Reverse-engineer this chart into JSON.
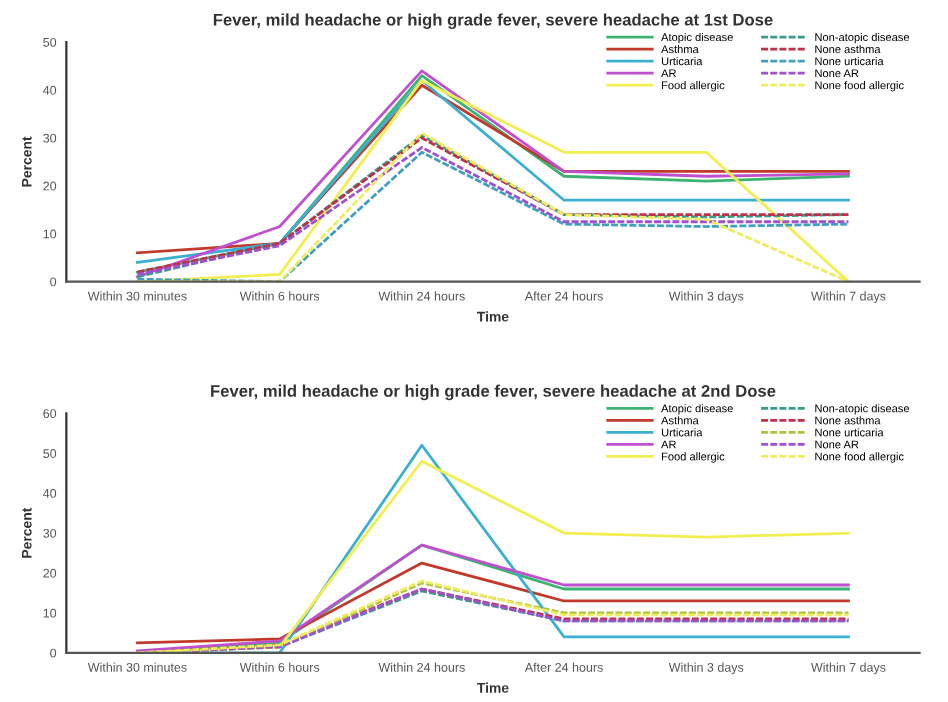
{
  "chart_data": [
    {
      "type": "line",
      "title": "Fever, mild headache or high grade fever, severe headache at 1st Dose",
      "xlabel": "Time",
      "ylabel": "Percent",
      "categories": [
        "Within 30 minutes",
        "Within 6 hours",
        "Within 24 hours",
        "After 24 hours",
        "Within 3 days",
        "Within 7 days"
      ],
      "ylim": [
        0,
        50
      ],
      "yticks": [
        0,
        10,
        20,
        30,
        40,
        50
      ],
      "grid": false,
      "legend": "top right",
      "marker": "none",
      "series": [
        {
          "name": "Atopic disease",
          "color": "#3cb371",
          "line_style": "solid",
          "values": [
            2,
            8,
            43,
            22,
            21,
            22
          ]
        },
        {
          "name": "Asthma",
          "color": "#c0392b",
          "line_style": "solid",
          "values": [
            6,
            8,
            41,
            23,
            23,
            23
          ]
        },
        {
          "name": "Urticaria",
          "color": "#3bb0d0",
          "line_style": "solid",
          "values": [
            4,
            8,
            42,
            17,
            17,
            17
          ]
        },
        {
          "name": "AR",
          "color": "#c050d0",
          "line_style": "solid",
          "values": [
            1,
            11.5,
            44,
            23,
            22,
            22.5
          ]
        },
        {
          "name": "Food allergic",
          "color": "#f2ee50",
          "line_style": "solid",
          "values": [
            0,
            1.5,
            42,
            27,
            27,
            0
          ]
        },
        {
          "name": "Non-atopic disease",
          "color": "#3a9a8a",
          "line_style": "dashed",
          "values": [
            1,
            8,
            30.5,
            14,
            13.5,
            14
          ]
        },
        {
          "name": "None asthma",
          "color": "#c0304a",
          "line_style": "dashed",
          "values": [
            2,
            8,
            30,
            14,
            14,
            14
          ]
        },
        {
          "name": "None urticaria",
          "color": "#40a0c0",
          "line_style": "dashed",
          "values": [
            0.5,
            0,
            27,
            12,
            11.5,
            12
          ]
        },
        {
          "name": "None AR",
          "color": "#a050d0",
          "line_style": "dashed",
          "values": [
            1.5,
            7.5,
            28,
            12.5,
            12.5,
            12.5
          ]
        },
        {
          "name": "None food allergic",
          "color": "#f0ec60",
          "line_style": "dashed",
          "values": [
            0,
            0,
            31,
            14,
            13,
            0
          ]
        }
      ]
    },
    {
      "type": "line",
      "title": "Fever, mild headache or high grade fever, severe headache at 2nd Dose",
      "xlabel": "Time",
      "ylabel": "Percent",
      "categories": [
        "Within 30 minutes",
        "Within 6 hours",
        "Within 24 hours",
        "After 24 hours",
        "Within 3 days",
        "Within 7 days"
      ],
      "ylim": [
        0,
        60
      ],
      "yticks": [
        0,
        10,
        20,
        30,
        40,
        50,
        60
      ],
      "grid": false,
      "legend": "top right",
      "marker": "none",
      "series": [
        {
          "name": "Atopic disease",
          "color": "#3cb371",
          "line_style": "solid",
          "values": [
            0,
            2.5,
            27,
            16,
            16,
            16
          ]
        },
        {
          "name": "Asthma",
          "color": "#c0392b",
          "line_style": "solid",
          "values": [
            2.5,
            3.5,
            22.5,
            13,
            13,
            13
          ]
        },
        {
          "name": "Urticaria",
          "color": "#3bb0d0",
          "line_style": "solid",
          "values": [
            0,
            0,
            52,
            4,
            4,
            4
          ]
        },
        {
          "name": "AR",
          "color": "#c050d0",
          "line_style": "solid",
          "values": [
            0.5,
            3,
            27,
            17,
            17,
            17
          ]
        },
        {
          "name": "Food allergic",
          "color": "#f2ee50",
          "line_style": "solid",
          "values": [
            0,
            1.5,
            48,
            30,
            29,
            30
          ]
        },
        {
          "name": "Non-atopic disease",
          "color": "#3a9a8a",
          "line_style": "dashed",
          "values": [
            0,
            1.5,
            15.5,
            8,
            8,
            8
          ]
        },
        {
          "name": "None asthma",
          "color": "#c0304a",
          "line_style": "dashed",
          "values": [
            0,
            2,
            16,
            8.5,
            8.5,
            8.5
          ]
        },
        {
          "name": "None urticaria",
          "color": "#b0c040",
          "line_style": "dashed",
          "values": [
            0,
            1.5,
            17.5,
            10,
            10,
            10
          ]
        },
        {
          "name": "None AR",
          "color": "#a050d0",
          "line_style": "dashed",
          "values": [
            0,
            1.5,
            16,
            8,
            8,
            8
          ]
        },
        {
          "name": "None food allergic",
          "color": "#f0ec60",
          "line_style": "dashed",
          "values": [
            0,
            2,
            18,
            9.5,
            9.5,
            9.5
          ]
        }
      ]
    }
  ]
}
